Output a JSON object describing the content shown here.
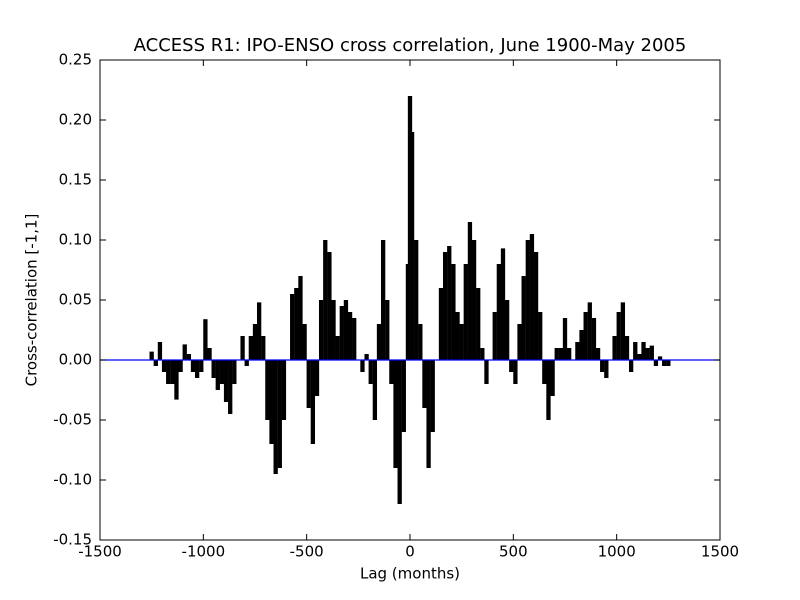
{
  "chart_data": {
    "type": "xcorr",
    "title": "ACCESS R1: IPO-ENSO cross correlation, June 1900-May 2005",
    "xlabel": "Lag (months)",
    "ylabel": "Cross-correlation [-1,1]",
    "color": "#000000",
    "baseline_color": "#0000ff",
    "xlim": [
      -1500,
      1500
    ],
    "xticks": [
      -1500,
      -1000,
      -500,
      0,
      500,
      1000,
      1500
    ],
    "ylim": [
      -0.15,
      0.25
    ],
    "yticks": [
      -0.15,
      {
        "value": -0.1,
        "label": "-0.10"
      },
      -0.05,
      {
        "value": 0,
        "label": "0.00"
      },
      0.05,
      {
        "value": 0.1,
        "label": "0.10"
      },
      0.15,
      {
        "value": 0.2,
        "label": "0.20"
      },
      0.25
    ],
    "x": [
      -1250,
      -1230,
      -1210,
      -1190,
      -1170,
      -1150,
      -1130,
      -1110,
      -1090,
      -1070,
      -1050,
      -1030,
      -1010,
      -990,
      -970,
      -950,
      -930,
      -910,
      -890,
      -870,
      -850,
      -830,
      -810,
      -790,
      -770,
      -750,
      -730,
      -710,
      -690,
      -670,
      -650,
      -630,
      -610,
      -590,
      -570,
      -550,
      -530,
      -510,
      -490,
      -470,
      -450,
      -430,
      -410,
      -390,
      -370,
      -350,
      -330,
      -310,
      -290,
      -270,
      -250,
      -230,
      -210,
      -190,
      -170,
      -150,
      -130,
      -110,
      -90,
      -70,
      -50,
      -30,
      -10,
      0,
      10,
      30,
      50,
      70,
      90,
      110,
      130,
      150,
      170,
      190,
      210,
      230,
      250,
      270,
      290,
      310,
      330,
      350,
      370,
      390,
      410,
      430,
      450,
      470,
      490,
      510,
      530,
      550,
      570,
      590,
      610,
      630,
      650,
      670,
      690,
      710,
      730,
      750,
      770,
      790,
      810,
      830,
      850,
      870,
      890,
      910,
      930,
      950,
      970,
      990,
      1010,
      1030,
      1050,
      1070,
      1090,
      1110,
      1130,
      1150,
      1170,
      1190,
      1210,
      1230,
      1250
    ],
    "values": [
      0.007,
      -0.005,
      0.015,
      -0.01,
      -0.02,
      -0.02,
      -0.033,
      -0.01,
      0.013,
      0.005,
      -0.01,
      -0.015,
      -0.01,
      0.034,
      0.01,
      -0.015,
      -0.025,
      -0.02,
      -0.035,
      -0.045,
      -0.02,
      0.0,
      0.02,
      -0.005,
      0.02,
      0.03,
      0.048,
      0.02,
      -0.05,
      -0.07,
      -0.095,
      -0.09,
      -0.05,
      0.0,
      0.055,
      0.06,
      0.07,
      0.03,
      -0.04,
      -0.07,
      -0.03,
      0.05,
      0.1,
      0.09,
      0.05,
      0.02,
      0.045,
      0.05,
      0.04,
      0.035,
      0.0,
      -0.01,
      0.005,
      -0.02,
      -0.05,
      0.03,
      0.1,
      0.05,
      -0.02,
      -0.09,
      -0.12,
      -0.06,
      0.08,
      0.22,
      0.19,
      0.1,
      0.03,
      -0.04,
      -0.09,
      -0.06,
      0.0,
      0.06,
      0.09,
      0.095,
      0.08,
      0.04,
      0.03,
      0.08,
      0.115,
      0.1,
      0.06,
      0.01,
      -0.02,
      0.0,
      0.04,
      0.08,
      0.093,
      0.05,
      -0.01,
      -0.02,
      0.03,
      0.07,
      0.1,
      0.105,
      0.09,
      0.04,
      -0.02,
      -0.05,
      -0.03,
      0.01,
      0.01,
      0.035,
      0.01,
      0.0,
      0.015,
      0.025,
      0.04,
      0.048,
      0.035,
      0.01,
      -0.01,
      -0.015,
      0.0,
      0.02,
      0.04,
      0.048,
      0.02,
      -0.01,
      0.015,
      0.005,
      0.015,
      0.01,
      0.012,
      -0.005,
      0.003,
      -0.005,
      -0.005
    ]
  }
}
